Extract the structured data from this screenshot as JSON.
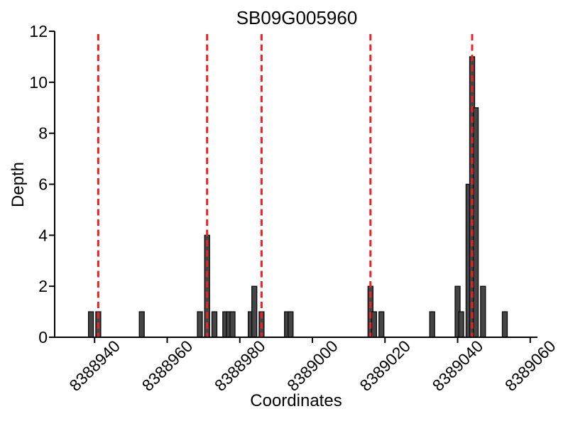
{
  "title": "SB09G005960",
  "chart_data": {
    "type": "bar",
    "title": "SB09G005960",
    "xlabel": "Coordinates",
    "ylabel": "Depth",
    "xlim": [
      8388929,
      8389062
    ],
    "ylim": [
      0,
      12
    ],
    "x_ticks": [
      8388940,
      8388960,
      8388980,
      8389000,
      8389020,
      8389040,
      8389060
    ],
    "x_tick_labels": [
      "8388940",
      "8388960",
      "8388980",
      "8389000",
      "8389020",
      "8389040",
      "8389060"
    ],
    "y_ticks": [
      0,
      2,
      4,
      6,
      8,
      10,
      12
    ],
    "y_tick_labels": [
      "0",
      "2",
      "4",
      "6",
      "8",
      "10",
      "12"
    ],
    "grid": false,
    "legend": null,
    "bar_color": "#454545",
    "bar_edge_color": "#0a0a0a",
    "vline_color": "#ee2124",
    "vline_style": "dashed",
    "vline_positions": [
      8388941,
      8388971,
      8388986,
      8389016,
      8389044
    ],
    "bars": [
      {
        "coordinate": 8388939,
        "depth": 1
      },
      {
        "coordinate": 8388941,
        "depth": 1
      },
      {
        "coordinate": 8388953,
        "depth": 1
      },
      {
        "coordinate": 8388969,
        "depth": 1
      },
      {
        "coordinate": 8388971,
        "depth": 4
      },
      {
        "coordinate": 8388973,
        "depth": 1
      },
      {
        "coordinate": 8388976,
        "depth": 1
      },
      {
        "coordinate": 8388977,
        "depth": 1
      },
      {
        "coordinate": 8388978,
        "depth": 1
      },
      {
        "coordinate": 8388983,
        "depth": 1
      },
      {
        "coordinate": 8388984,
        "depth": 2
      },
      {
        "coordinate": 8388986,
        "depth": 1
      },
      {
        "coordinate": 8388993,
        "depth": 1
      },
      {
        "coordinate": 8388994,
        "depth": 1
      },
      {
        "coordinate": 8389016,
        "depth": 2
      },
      {
        "coordinate": 8389017,
        "depth": 1
      },
      {
        "coordinate": 8389019,
        "depth": 1
      },
      {
        "coordinate": 8389033,
        "depth": 1
      },
      {
        "coordinate": 8389040,
        "depth": 2
      },
      {
        "coordinate": 8389041,
        "depth": 1
      },
      {
        "coordinate": 8389043,
        "depth": 6
      },
      {
        "coordinate": 8389044,
        "depth": 11
      },
      {
        "coordinate": 8389045,
        "depth": 9
      },
      {
        "coordinate": 8389047,
        "depth": 2
      },
      {
        "coordinate": 8389053,
        "depth": 1
      }
    ]
  }
}
